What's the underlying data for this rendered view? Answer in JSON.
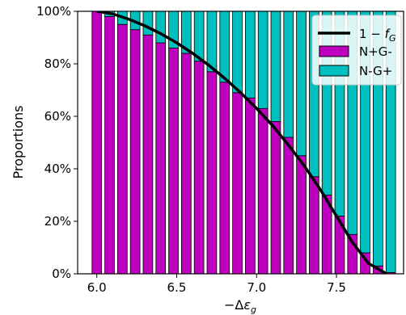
{
  "chart_data": {
    "type": "bar",
    "stacked": true,
    "xlabel": "−Δε_g",
    "ylabel": "Proportions",
    "xlim": [
      5.88,
      7.92
    ],
    "ylim": [
      0,
      100
    ],
    "xticks": [
      6.0,
      6.5,
      7.0,
      7.5
    ],
    "xtick_labels": [
      "6.0",
      "6.5",
      "7.0",
      "7.5"
    ],
    "yticks": [
      0,
      20,
      40,
      60,
      80,
      100
    ],
    "ytick_labels": [
      "0%",
      "20%",
      "40%",
      "60%",
      "80%",
      "100%"
    ],
    "bar_width": 0.06,
    "x": [
      6.0,
      6.08,
      6.16,
      6.24,
      6.32,
      6.4,
      6.48,
      6.56,
      6.64,
      6.72,
      6.8,
      6.88,
      6.96,
      7.04,
      7.12,
      7.2,
      7.28,
      7.36,
      7.44,
      7.52,
      7.6,
      7.68,
      7.76,
      7.84
    ],
    "series": [
      {
        "name": "N+G-",
        "color": "#bf00bf",
        "values": [
          100,
          98,
          95,
          93,
          91,
          88,
          86,
          84,
          81,
          77,
          73,
          69,
          67,
          63,
          58,
          52,
          45,
          37,
          30,
          22,
          15,
          8,
          3,
          0.5
        ]
      },
      {
        "name": "N-G+",
        "color": "#00bfbf",
        "values": [
          0,
          2,
          5,
          7,
          9,
          12,
          14,
          16,
          19,
          23,
          27,
          31,
          33,
          37,
          42,
          48,
          55,
          63,
          70,
          78,
          85,
          92,
          97,
          99.5
        ]
      }
    ],
    "line": {
      "name": "1 − f_G",
      "color": "#000000",
      "x": [
        6.0,
        6.1,
        6.2,
        6.3,
        6.4,
        6.5,
        6.6,
        6.7,
        6.8,
        6.9,
        7.0,
        7.1,
        7.2,
        7.3,
        7.4,
        7.5,
        7.6,
        7.7,
        7.8,
        7.85,
        7.88
      ],
      "values": [
        100,
        99,
        97,
        94.5,
        91.5,
        88,
        84,
        79.5,
        74.5,
        69,
        63,
        56.5,
        49,
        41,
        32,
        22,
        12,
        4,
        0.5,
        -4,
        -8
      ]
    },
    "legend": {
      "position": "top-right",
      "entries": [
        "1 − f_G",
        "N+G-",
        "N-G+"
      ]
    },
    "grid": false
  }
}
